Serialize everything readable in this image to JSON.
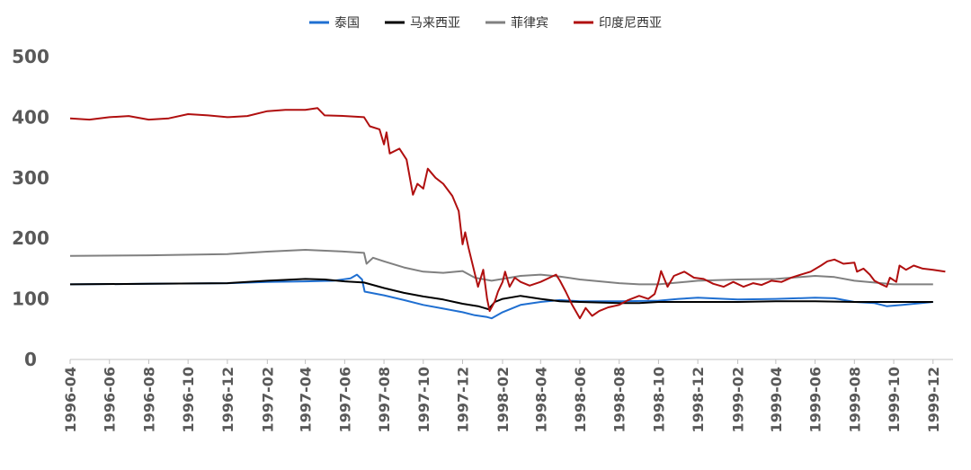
{
  "chart_data": {
    "type": "line",
    "title": "",
    "xlabel": "",
    "ylabel": "",
    "ylim": [
      0,
      500
    ],
    "yticks": [
      0,
      100,
      200,
      300,
      400,
      500
    ],
    "xlim": [
      "1996-04",
      "1999-12"
    ],
    "xticks": [
      "1996-04",
      "1996-06",
      "1996-08",
      "1996-10",
      "1996-12",
      "1997-02",
      "1997-04",
      "1997-06",
      "1997-08",
      "1997-10",
      "1997-12",
      "1998-02",
      "1998-04",
      "1998-06",
      "1998-08",
      "1998-10",
      "1998-12",
      "1999-02",
      "1999-04",
      "1999-06",
      "1999-08",
      "1999-10",
      "1999-12"
    ],
    "grid": false,
    "legend_position": "top",
    "series": [
      {
        "name": "泰国",
        "color": "#1f6fd1",
        "points": [
          [
            "1996-04-01",
            124
          ],
          [
            "1996-08-01",
            125
          ],
          [
            "1996-12-01",
            126
          ],
          [
            "1997-02-01",
            128
          ],
          [
            "1997-04-01",
            129
          ],
          [
            "1997-05-15",
            130
          ],
          [
            "1997-06-10",
            134
          ],
          [
            "1997-06-20",
            140
          ],
          [
            "1997-06-28",
            132
          ],
          [
            "1997-07-02",
            112
          ],
          [
            "1997-08-01",
            106
          ],
          [
            "1997-09-01",
            98
          ],
          [
            "1997-10-01",
            90
          ],
          [
            "1997-11-01",
            84
          ],
          [
            "1997-12-01",
            78
          ],
          [
            "1997-12-20",
            73
          ],
          [
            "1998-01-08",
            70
          ],
          [
            "1998-01-15",
            68
          ],
          [
            "1998-02-01",
            78
          ],
          [
            "1998-03-01",
            90
          ],
          [
            "1998-04-01",
            95
          ],
          [
            "1998-05-01",
            98
          ],
          [
            "1998-06-01",
            96
          ],
          [
            "1998-08-01",
            96
          ],
          [
            "1998-10-01",
            97
          ],
          [
            "1998-11-01",
            100
          ],
          [
            "1998-12-01",
            102
          ],
          [
            "1999-02-01",
            99
          ],
          [
            "1999-04-01",
            100
          ],
          [
            "1999-06-01",
            102
          ],
          [
            "1999-07-01",
            101
          ],
          [
            "1999-08-01",
            95
          ],
          [
            "1999-09-01",
            93
          ],
          [
            "1999-09-20",
            88
          ],
          [
            "1999-10-15",
            90
          ],
          [
            "1999-12-01",
            95
          ]
        ]
      },
      {
        "name": "马来西亚",
        "color": "#000000",
        "points": [
          [
            "1996-04-01",
            124
          ],
          [
            "1996-08-01",
            125
          ],
          [
            "1996-12-01",
            126
          ],
          [
            "1997-02-01",
            130
          ],
          [
            "1997-04-01",
            133
          ],
          [
            "1997-05-01",
            132
          ],
          [
            "1997-06-01",
            129
          ],
          [
            "1997-07-01",
            127
          ],
          [
            "1997-08-01",
            118
          ],
          [
            "1997-09-01",
            110
          ],
          [
            "1997-10-01",
            104
          ],
          [
            "1997-11-01",
            99
          ],
          [
            "1997-12-01",
            92
          ],
          [
            "1997-12-25",
            88
          ],
          [
            "1998-01-10",
            83
          ],
          [
            "1998-01-20",
            95
          ],
          [
            "1998-02-01",
            100
          ],
          [
            "1998-03-01",
            105
          ],
          [
            "1998-04-01",
            100
          ],
          [
            "1998-05-01",
            96
          ],
          [
            "1998-06-01",
            95
          ],
          [
            "1998-08-01",
            93
          ],
          [
            "1998-09-01",
            93
          ],
          [
            "1998-10-01",
            95
          ],
          [
            "1998-12-01",
            95
          ],
          [
            "1999-02-01",
            95
          ],
          [
            "1999-04-01",
            96
          ],
          [
            "1999-06-01",
            96
          ],
          [
            "1999-08-01",
            95
          ],
          [
            "1999-10-01",
            95
          ],
          [
            "1999-12-01",
            95
          ]
        ]
      },
      {
        "name": "菲律宾",
        "color": "#808080",
        "points": [
          [
            "1996-04-01",
            171
          ],
          [
            "1996-08-01",
            172
          ],
          [
            "1996-12-01",
            174
          ],
          [
            "1997-02-01",
            178
          ],
          [
            "1997-04-01",
            181
          ],
          [
            "1997-06-01",
            178
          ],
          [
            "1997-07-01",
            176
          ],
          [
            "1997-07-05",
            158
          ],
          [
            "1997-07-15",
            168
          ],
          [
            "1997-08-01",
            162
          ],
          [
            "1997-09-01",
            152
          ],
          [
            "1997-10-01",
            145
          ],
          [
            "1997-11-01",
            143
          ],
          [
            "1997-12-01",
            146
          ],
          [
            "1997-12-20",
            135
          ],
          [
            "1998-01-15",
            130
          ],
          [
            "1998-02-01",
            133
          ],
          [
            "1998-03-01",
            138
          ],
          [
            "1998-04-01",
            140
          ],
          [
            "1998-05-01",
            137
          ],
          [
            "1998-06-01",
            132
          ],
          [
            "1998-08-01",
            126
          ],
          [
            "1998-09-01",
            124
          ],
          [
            "1998-10-01",
            124
          ],
          [
            "1998-12-01",
            130
          ],
          [
            "1999-02-01",
            132
          ],
          [
            "1999-04-01",
            133
          ],
          [
            "1999-06-01",
            138
          ],
          [
            "1999-07-01",
            136
          ],
          [
            "1999-08-01",
            130
          ],
          [
            "1999-10-01",
            124
          ],
          [
            "1999-12-01",
            124
          ]
        ]
      },
      {
        "name": "印度尼西亚",
        "color": "#b00f0f",
        "points": [
          [
            "1996-04-01",
            398
          ],
          [
            "1996-05-01",
            396
          ],
          [
            "1996-06-01",
            400
          ],
          [
            "1996-07-01",
            402
          ],
          [
            "1996-08-01",
            396
          ],
          [
            "1996-09-01",
            398
          ],
          [
            "1996-10-01",
            405
          ],
          [
            "1996-11-01",
            403
          ],
          [
            "1996-12-01",
            400
          ],
          [
            "1997-01-01",
            402
          ],
          [
            "1997-02-01",
            410
          ],
          [
            "1997-03-01",
            412
          ],
          [
            "1997-04-01",
            412
          ],
          [
            "1997-04-20",
            415
          ],
          [
            "1997-05-01",
            403
          ],
          [
            "1997-06-01",
            402
          ],
          [
            "1997-07-01",
            400
          ],
          [
            "1997-07-10",
            385
          ],
          [
            "1997-07-25",
            380
          ],
          [
            "1997-08-01",
            355
          ],
          [
            "1997-08-05",
            375
          ],
          [
            "1997-08-10",
            340
          ],
          [
            "1997-08-25",
            348
          ],
          [
            "1997-09-05",
            330
          ],
          [
            "1997-09-15",
            272
          ],
          [
            "1997-09-22",
            290
          ],
          [
            "1997-10-01",
            282
          ],
          [
            "1997-10-08",
            315
          ],
          [
            "1997-10-20",
            300
          ],
          [
            "1997-11-01",
            290
          ],
          [
            "1997-11-15",
            270
          ],
          [
            "1997-11-25",
            245
          ],
          [
            "1997-12-01",
            190
          ],
          [
            "1997-12-05",
            210
          ],
          [
            "1997-12-10",
            185
          ],
          [
            "1997-12-25",
            120
          ],
          [
            "1998-01-02",
            148
          ],
          [
            "1998-01-08",
            100
          ],
          [
            "1998-01-12",
            80
          ],
          [
            "1998-01-20",
            96
          ],
          [
            "1998-01-25",
            112
          ],
          [
            "1998-02-01",
            128
          ],
          [
            "1998-02-05",
            145
          ],
          [
            "1998-02-12",
            120
          ],
          [
            "1998-02-20",
            135
          ],
          [
            "1998-03-01",
            128
          ],
          [
            "1998-03-15",
            122
          ],
          [
            "1998-04-01",
            128
          ],
          [
            "1998-04-15",
            135
          ],
          [
            "1998-04-25",
            140
          ],
          [
            "1998-05-01",
            130
          ],
          [
            "1998-05-10",
            112
          ],
          [
            "1998-05-20",
            90
          ],
          [
            "1998-06-01",
            68
          ],
          [
            "1998-06-10",
            85
          ],
          [
            "1998-06-20",
            72
          ],
          [
            "1998-07-01",
            80
          ],
          [
            "1998-07-15",
            86
          ],
          [
            "1998-08-01",
            90
          ],
          [
            "1998-08-15",
            98
          ],
          [
            "1998-09-01",
            105
          ],
          [
            "1998-09-15",
            100
          ],
          [
            "1998-09-25",
            108
          ],
          [
            "1998-10-01",
            128
          ],
          [
            "1998-10-05",
            146
          ],
          [
            "1998-10-15",
            120
          ],
          [
            "1998-10-25",
            138
          ],
          [
            "1998-11-10",
            145
          ],
          [
            "1998-11-25",
            135
          ],
          [
            "1998-12-10",
            133
          ],
          [
            "1998-12-25",
            125
          ],
          [
            "1999-01-10",
            120
          ],
          [
            "1999-01-25",
            128
          ],
          [
            "1999-02-10",
            120
          ],
          [
            "1999-02-25",
            126
          ],
          [
            "1999-03-10",
            123
          ],
          [
            "1999-03-25",
            130
          ],
          [
            "1999-04-10",
            128
          ],
          [
            "1999-04-25",
            135
          ],
          [
            "1999-05-10",
            140
          ],
          [
            "1999-05-25",
            145
          ],
          [
            "1999-06-10",
            155
          ],
          [
            "1999-06-20",
            162
          ],
          [
            "1999-07-01",
            165
          ],
          [
            "1999-07-15",
            158
          ],
          [
            "1999-08-01",
            160
          ],
          [
            "1999-08-05",
            145
          ],
          [
            "1999-08-15",
            150
          ],
          [
            "1999-08-25",
            140
          ],
          [
            "1999-09-01",
            130
          ],
          [
            "1999-09-10",
            125
          ],
          [
            "1999-09-20",
            120
          ],
          [
            "1999-09-25",
            135
          ],
          [
            "1999-10-05",
            128
          ],
          [
            "1999-10-10",
            155
          ],
          [
            "1999-10-20",
            148
          ],
          [
            "1999-11-01",
            155
          ],
          [
            "1999-11-15",
            150
          ],
          [
            "1999-12-01",
            148
          ],
          [
            "1999-12-20",
            145
          ]
        ]
      }
    ]
  }
}
